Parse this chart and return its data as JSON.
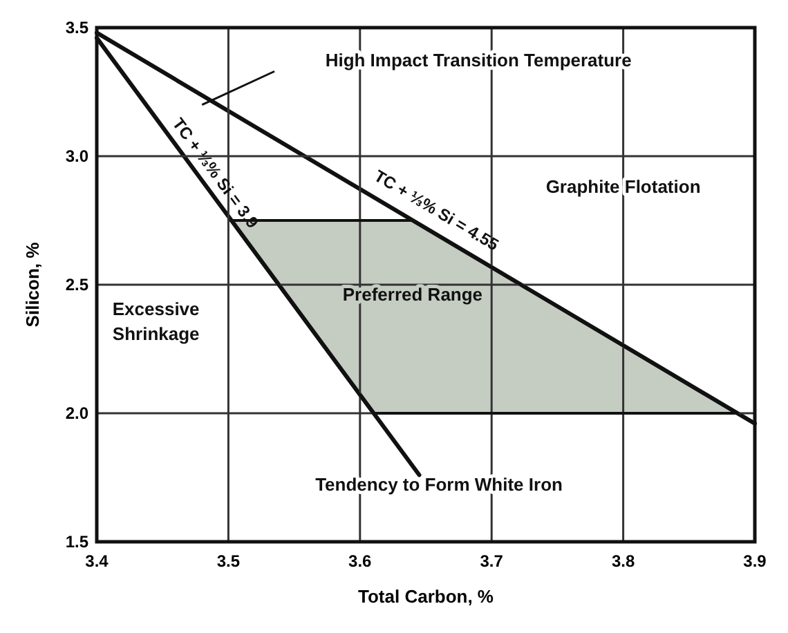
{
  "chart_data": {
    "type": "line",
    "xlabel": "Total Carbon, %",
    "ylabel": "Silicon, %",
    "xlim": [
      3.4,
      3.9
    ],
    "xticks": [
      3.4,
      3.5,
      3.6,
      3.7,
      3.8,
      3.9
    ],
    "ylim": [
      1.5,
      3.5
    ],
    "yticks": [
      {
        "value": 1.5,
        "label": "1.5"
      },
      {
        "value": 2.0,
        "label": "2.0"
      },
      {
        "value": 2.5,
        "label": "2.5"
      },
      {
        "value": 3.0,
        "label": "3.0"
      },
      {
        "value": 3.5,
        "label": "3.5"
      }
    ],
    "grid": true,
    "marker": "none",
    "line_style": "solid",
    "series": [
      {
        "type": "area",
        "color": "#c5cdc3",
        "x": [
          3.502,
          3.64,
          3.887,
          3.61
        ],
        "values": [
          2.75,
          2.75,
          2.0,
          2.0
        ]
      },
      {
        "name": "TC + ⅓% Si = 4.55",
        "color": "#111111",
        "x": [
          3.4,
          3.9
        ],
        "values": [
          3.48,
          1.96
        ]
      },
      {
        "name": "TC + ⅓% Si = 3.9",
        "color": "#111111",
        "x": [
          3.4,
          3.645
        ],
        "values": [
          3.46,
          1.76
        ]
      }
    ],
    "annotations": [
      "High Impact Transition Temperature",
      "Graphite Flotation",
      "Excessive Shrinkage",
      "Preferred Range",
      "Tendency to Form White Iron"
    ]
  }
}
